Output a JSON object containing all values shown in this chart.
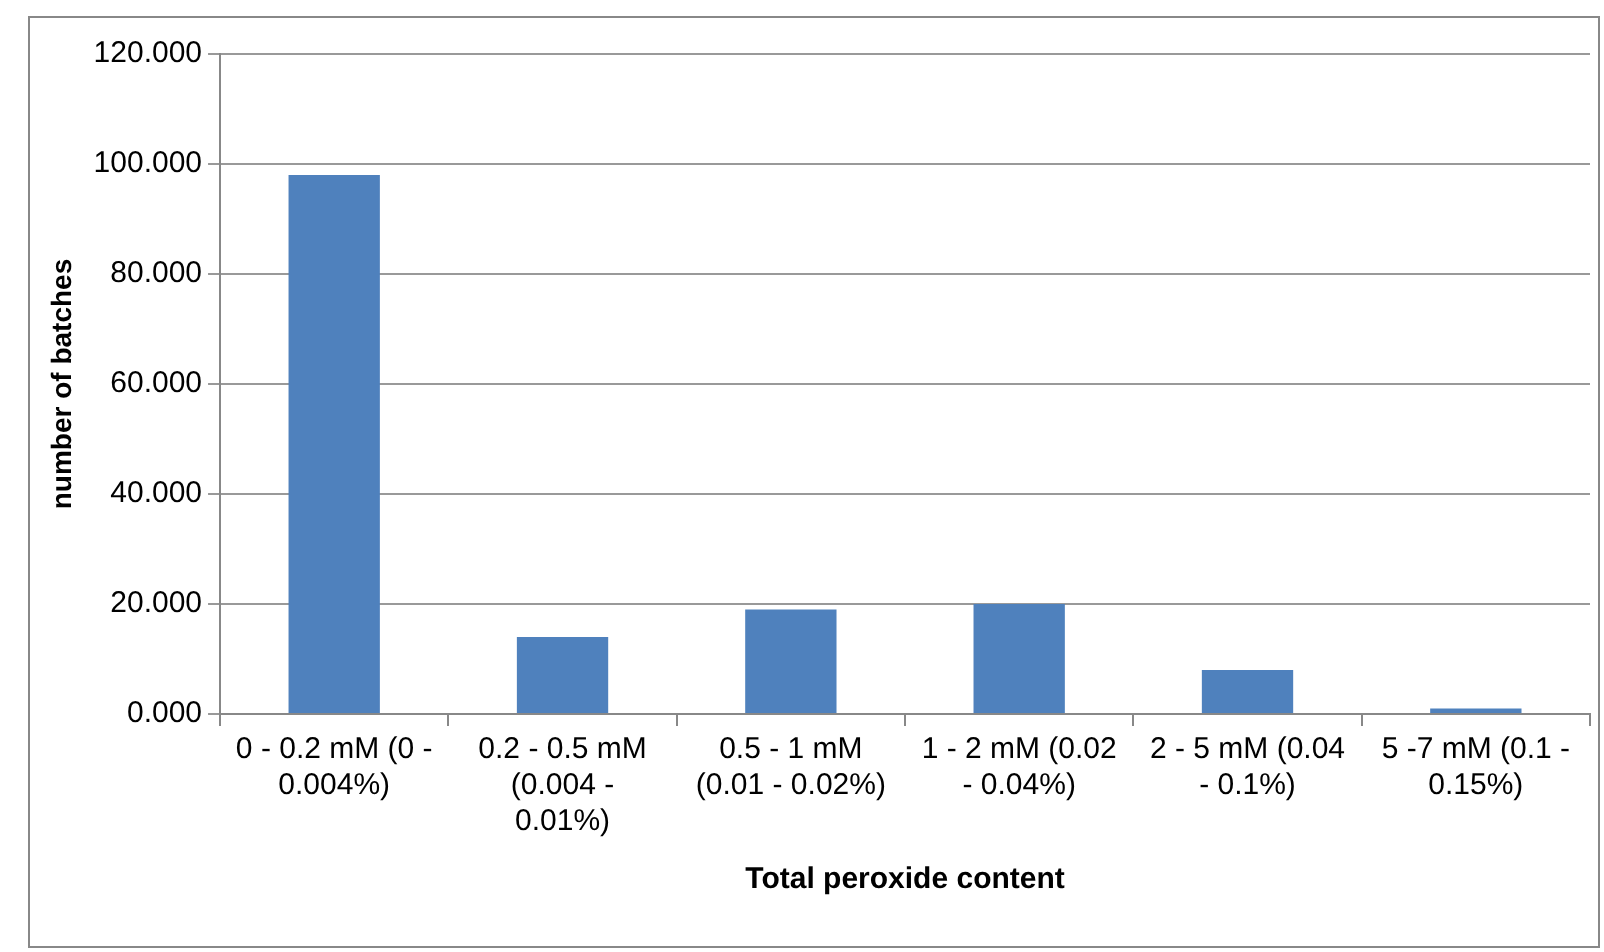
{
  "chart_data": {
    "type": "bar",
    "xlabel": "Total peroxide content",
    "ylabel": "number of batches",
    "categories": [
      "0 - 0.2 mM (0 - 0.004%)",
      "0.2 - 0.5 mM (0.004 - 0.01%)",
      "0.5 - 1 mM (0.01 - 0.02%)",
      "1 - 2 mM (0.02 - 0.04%)",
      "2 - 5 mM (0.04 - 0.1%)",
      "5 -7 mM (0.1 - 0.15%)"
    ],
    "values": [
      98,
      14,
      19,
      20,
      8,
      1
    ],
    "color": "#4f81bd",
    "ylim": [
      0,
      120
    ],
    "yticks": [
      {
        "value": 0,
        "label": "0.000"
      },
      {
        "value": 20,
        "label": "20.000"
      },
      {
        "value": 40,
        "label": "40.000"
      },
      {
        "value": 60,
        "label": "60.000"
      },
      {
        "value": 80,
        "label": "80.000"
      },
      {
        "value": 100,
        "label": "100.000"
      },
      {
        "value": 120,
        "label": "120.000"
      }
    ],
    "grid": "y",
    "legend": false
  }
}
